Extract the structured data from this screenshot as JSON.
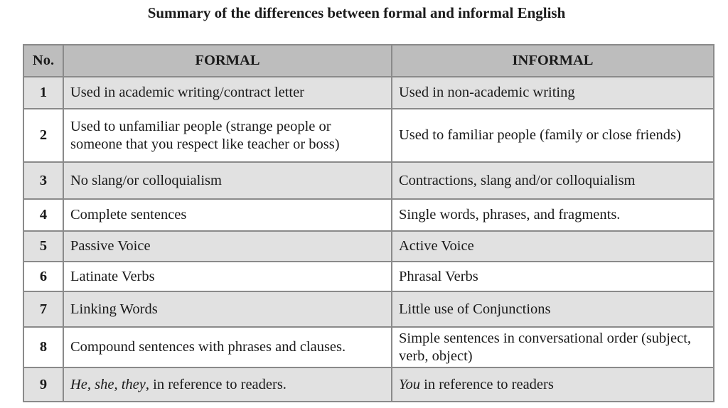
{
  "title": "Summary of the differences between formal and informal English",
  "table": {
    "headers": [
      "No.",
      "FORMAL",
      "INFORMAL"
    ],
    "rows": [
      {
        "no": "1",
        "formal": "Used in academic writing/contract letter",
        "informal": "Used in non-academic writing"
      },
      {
        "no": "2",
        "formal": "Used to unfamiliar people (strange people or someone that you respect like teacher or boss)",
        "informal": "Used to familiar people (family or close friends)"
      },
      {
        "no": "3",
        "formal": "No slang/or colloquialism",
        "informal": "Contractions, slang and/or colloquialism"
      },
      {
        "no": "4",
        "formal": "Complete sentences",
        "informal": "Single words, phrases, and fragments."
      },
      {
        "no": "5",
        "formal": "Passive Voice",
        "informal": "Active Voice"
      },
      {
        "no": "6",
        "formal": "Latinate Verbs",
        "informal": "Phrasal Verbs"
      },
      {
        "no": "7",
        "formal": "Linking Words",
        "informal": "Little use of Conjunctions"
      },
      {
        "no": "8",
        "formal": "Compound sentences with phrases and clauses.",
        "informal": "Simple sentences in conversational order (subject, verb, object)"
      },
      {
        "no": "9",
        "formal_italic": "He, she, they",
        "formal": ", in reference to readers.",
        "informal_italic": "You",
        "informal": " in reference to readers"
      }
    ]
  }
}
